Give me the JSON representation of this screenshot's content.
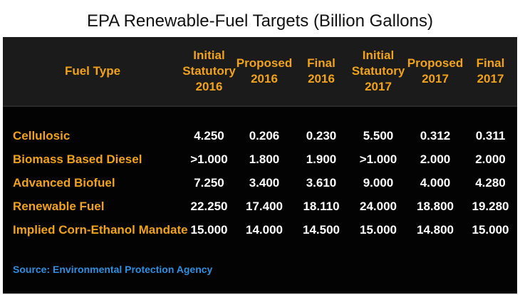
{
  "title": "EPA Renewable-Fuel Targets (Billion Gallons)",
  "source": "Source: Environmental Protection Agency",
  "colors": {
    "panel_bg": "#030303",
    "header_bg": "#1b1b1b",
    "header_text": "#f0a21a",
    "row_label": "#f0a21a",
    "value_text": "#ffffff",
    "source_text": "#2f8fe0"
  },
  "chart_data": {
    "type": "table",
    "title": "EPA Renewable-Fuel Targets (Billion Gallons)",
    "columns": [
      {
        "lines": [
          "Fuel Type"
        ]
      },
      {
        "lines": [
          "Initial",
          "Statutory",
          "2016"
        ]
      },
      {
        "lines": [
          "Proposed",
          "2016"
        ]
      },
      {
        "lines": [
          "Final",
          "2016"
        ]
      },
      {
        "lines": [
          "Initial",
          "Statutory",
          "2017"
        ]
      },
      {
        "lines": [
          "Proposed",
          "2017"
        ]
      },
      {
        "lines": [
          "Final",
          "2017"
        ]
      }
    ],
    "rows": [
      {
        "label": "Cellulosic",
        "values": [
          "4.250",
          "0.206",
          "0.230",
          "5.500",
          "0.312",
          "0.311"
        ]
      },
      {
        "label": "Biomass Based Diesel",
        "values": [
          ">1.000",
          "1.800",
          "1.900",
          ">1.000",
          "2.000",
          "2.000"
        ]
      },
      {
        "label": "Advanced Biofuel",
        "values": [
          "7.250",
          "3.400",
          "3.610",
          "9.000",
          "4.000",
          "4.280"
        ]
      },
      {
        "label": "Renewable Fuel",
        "values": [
          "22.250",
          "17.400",
          "18.110",
          "24.000",
          "18.800",
          "19.280"
        ]
      },
      {
        "label": "Implied Corn-Ethanol Mandate",
        "values": [
          "15.000",
          "14.000",
          "14.500",
          "15.000",
          "14.800",
          "15.000"
        ]
      }
    ]
  }
}
